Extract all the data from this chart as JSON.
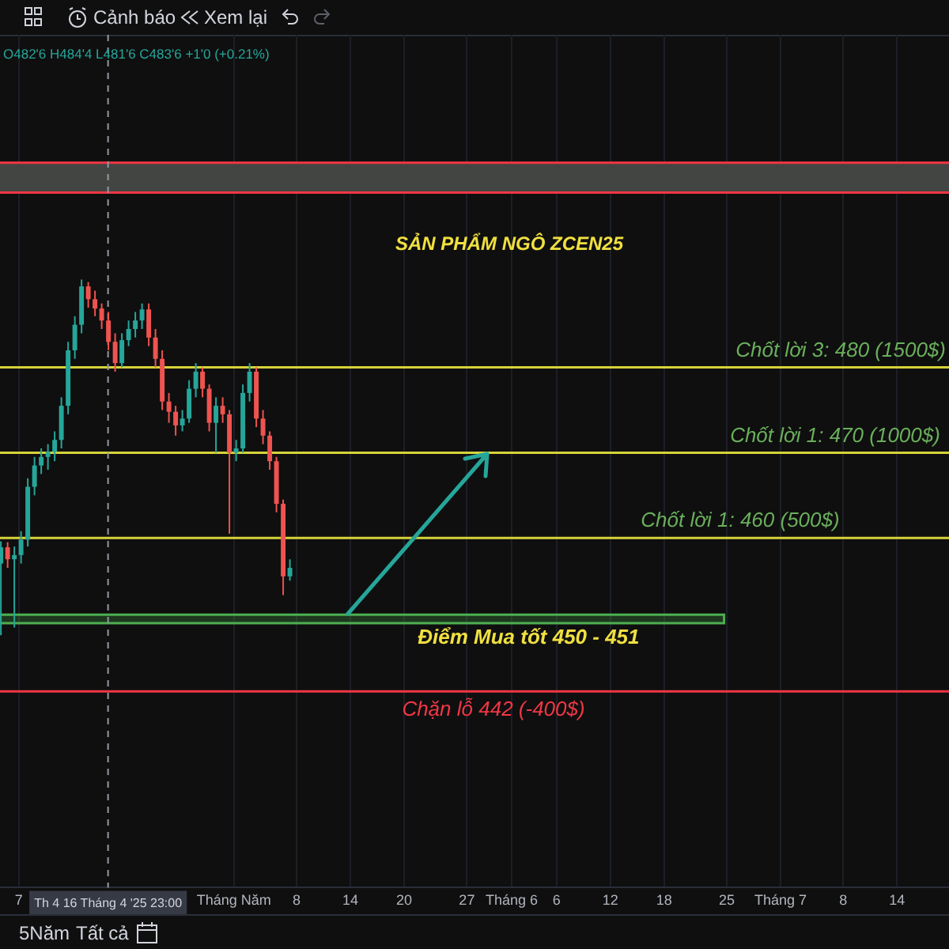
{
  "chart_data": {
    "type": "candlestick",
    "title": "SẢN PHẨM NGÔ ZCEN25",
    "annotations": [
      "O482'6 H484'4 L481'6 C483'6 +1'0 (+0.21%)",
      "Cảnh báo",
      "Xem lại",
      "5Năm",
      "Tất cả"
    ],
    "x": [
      "2025-04-05T00:00",
      "2025-04-05T18:00",
      "2025-04-06T12:00",
      "2025-04-07T06:00",
      "2025-04-08T00:00",
      "2025-04-08T18:00",
      "2025-04-09T12:00",
      "2025-04-10T06:00",
      "2025-04-11T00:00",
      "2025-04-11T18:00",
      "2025-04-12T12:00",
      "2025-04-13T06:00",
      "2025-04-14T00:00",
      "2025-04-14T18:00",
      "2025-04-15T12:00",
      "2025-04-16T06:00",
      "2025-04-17T00:00",
      "2025-04-17T18:00",
      "2025-04-18T12:00",
      "2025-04-19T06:00",
      "2025-04-20T00:00",
      "2025-04-20T18:00",
      "2025-04-21T12:00",
      "2025-04-22T06:00",
      "2025-04-23T00:00",
      "2025-04-23T18:00",
      "2025-04-24T12:00",
      "2025-04-25T06:00",
      "2025-04-26T00:00",
      "2025-04-26T18:00",
      "2025-04-27T12:00",
      "2025-04-28T06:00",
      "2025-04-29T00:00",
      "2025-04-29T18:00",
      "2025-04-30T12:00",
      "2025-05-01T06:00",
      "2025-05-02T00:00",
      "2025-05-02T18:00",
      "2025-05-03T12:00",
      "2025-05-04T06:00",
      "2025-05-05T00:00",
      "2025-05-05T18:00",
      "2025-05-06T12:00",
      "2025-05-07T06:00"
    ],
    "ohlc": [
      [
        457.0,
        459.6,
        448.6,
        458.9
      ],
      [
        458.9,
        459.5,
        456.5,
        457.5
      ],
      [
        457.5,
        459.0,
        449.5,
        458.0
      ],
      [
        458.0,
        460.8,
        457.0,
        459.8
      ],
      [
        459.8,
        467.0,
        459.0,
        466.0
      ],
      [
        466.0,
        469.5,
        465.0,
        468.5
      ],
      [
        468.5,
        470.5,
        467.5,
        469.5
      ],
      [
        469.5,
        471.0,
        468.0,
        470.1
      ],
      [
        470.1,
        472.5,
        469.0,
        471.5
      ],
      [
        471.5,
        476.5,
        470.5,
        475.5
      ],
      [
        475.5,
        483.0,
        474.5,
        482.0
      ],
      [
        482.0,
        486.0,
        481.0,
        485.0
      ],
      [
        485.0,
        490.3,
        484.0,
        489.5
      ],
      [
        489.5,
        490.0,
        487.0,
        488.0
      ],
      [
        488.0,
        489.0,
        486.0,
        486.9
      ],
      [
        486.9,
        487.5,
        484.5,
        485.5
      ],
      [
        485.5,
        486.5,
        482.0,
        483.0
      ],
      [
        483.0,
        484.0,
        479.5,
        480.5
      ],
      [
        480.5,
        484.0,
        480.0,
        483.2
      ],
      [
        483.2,
        485.5,
        482.5,
        484.5
      ],
      [
        484.5,
        486.5,
        483.5,
        485.5
      ],
      [
        485.5,
        487.5,
        484.5,
        486.8
      ],
      [
        486.8,
        487.5,
        482.5,
        483.5
      ],
      [
        483.5,
        484.5,
        480.0,
        481.0
      ],
      [
        481.0,
        482.0,
        475.0,
        476.0
      ],
      [
        476.0,
        477.0,
        473.5,
        474.8
      ],
      [
        474.8,
        475.5,
        472.0,
        473.2
      ],
      [
        473.2,
        475.0,
        472.5,
        474.0
      ],
      [
        474.0,
        478.5,
        473.5,
        477.5
      ],
      [
        477.5,
        480.5,
        476.5,
        479.5
      ],
      [
        479.5,
        480.0,
        476.5,
        477.5
      ],
      [
        477.5,
        478.0,
        472.5,
        473.5
      ],
      [
        473.5,
        476.5,
        470.0,
        475.5
      ],
      [
        475.5,
        476.5,
        473.5,
        474.5
      ],
      [
        474.5,
        475.0,
        460.5,
        470.0
      ],
      [
        470.0,
        471.5,
        469.0,
        470.5
      ],
      [
        470.5,
        478.0,
        470.0,
        477.0
      ],
      [
        477.0,
        480.5,
        476.0,
        479.5
      ],
      [
        479.5,
        480.0,
        473.0,
        474.0
      ],
      [
        474.0,
        475.0,
        471.0,
        472.0
      ],
      [
        472.0,
        472.5,
        468.0,
        469.0
      ],
      [
        469.0,
        469.5,
        463.0,
        464.0
      ],
      [
        464.0,
        464.5,
        453.3,
        455.5
      ],
      [
        455.5,
        457.5,
        455.0,
        456.5
      ]
    ],
    "colors": [
      "#26a69a",
      "#ef5350",
      "#26a69a",
      "#26a69a",
      "#26a69a",
      "#26a69a",
      "#26a69a",
      "#26a69a",
      "#26a69a",
      "#26a69a",
      "#26a69a",
      "#26a69a",
      "#26a69a",
      "#ef5350",
      "#ef5350",
      "#ef5350",
      "#ef5350",
      "#ef5350",
      "#26a69a",
      "#26a69a",
      "#26a69a",
      "#26a69a",
      "#ef5350",
      "#ef5350",
      "#ef5350",
      "#ef5350",
      "#ef5350",
      "#26a69a",
      "#26a69a",
      "#26a69a",
      "#ef5350",
      "#ef5350",
      "#26a69a",
      "#ef5350",
      "#ef5350",
      "#26a69a",
      "#26a69a",
      "#26a69a",
      "#ef5350",
      "#ef5350",
      "#ef5350",
      "#ef5350",
      "#ef5350",
      "#26a69a"
    ],
    "xlim": [
      "2025-04-04T21:36",
      "2025-07-19T19:12"
    ],
    "ylim": [
      419,
      519
    ],
    "xticks": [
      {
        "value": "2025-04-07",
        "label": "7"
      },
      {
        "value": "2025-05-01",
        "label": "Tháng Năm"
      },
      {
        "value": "2025-05-08",
        "label": "8"
      },
      {
        "value": "2025-05-14",
        "label": "14"
      },
      {
        "value": "2025-05-20",
        "label": "20"
      },
      {
        "value": "2025-05-27",
        "label": "27"
      },
      {
        "value": "2025-06-01",
        "label": "Tháng 6"
      },
      {
        "value": "2025-06-06",
        "label": "6"
      },
      {
        "value": "2025-06-12",
        "label": "12"
      },
      {
        "value": "2025-06-18",
        "label": "18"
      },
      {
        "value": "2025-06-25",
        "label": "25"
      },
      {
        "value": "2025-07-01",
        "label": "Tháng 7"
      },
      {
        "value": "2025-07-08",
        "label": "8"
      },
      {
        "value": "2025-07-14",
        "label": "14"
      }
    ],
    "tick_labels": "x",
    "grid": "x",
    "legend": false,
    "ref_lines": [
      {
        "axis": "y",
        "value": 504,
        "color": "#f23645"
      },
      {
        "axis": "y",
        "value": 500.5,
        "color": "#f23645"
      },
      {
        "axis": "y",
        "value": 480,
        "label": "Chốt lời 3: 480 (1500$)",
        "color": "#d6d33a"
      },
      {
        "axis": "y",
        "value": 470,
        "label": "Chốt lời 1: 470 (1000$)",
        "color": "#d6d33a"
      },
      {
        "axis": "y",
        "value": 460,
        "label": "Chốt lời 1: 460 (500$)",
        "color": "#d6d33a"
      },
      {
        "axis": "y",
        "value": 442,
        "label": "Chặn lỗ 442 (-400$)",
        "color": "#f23645"
      },
      {
        "axis": "x",
        "value": "2025-04-16T23:00",
        "label": "Th 4 16 Tháng 4 '25 23:00",
        "color": "#9598a1",
        "line_style": "dashed"
      }
    ],
    "bands": [
      {
        "axis": "y",
        "from": 500.5,
        "to": 504,
        "color": "#424542"
      },
      {
        "axis": "y",
        "from": 450,
        "to": 451,
        "label": "Điểm Mua tốt 450 - 451",
        "color": "#4caf50"
      }
    ]
  }
}
